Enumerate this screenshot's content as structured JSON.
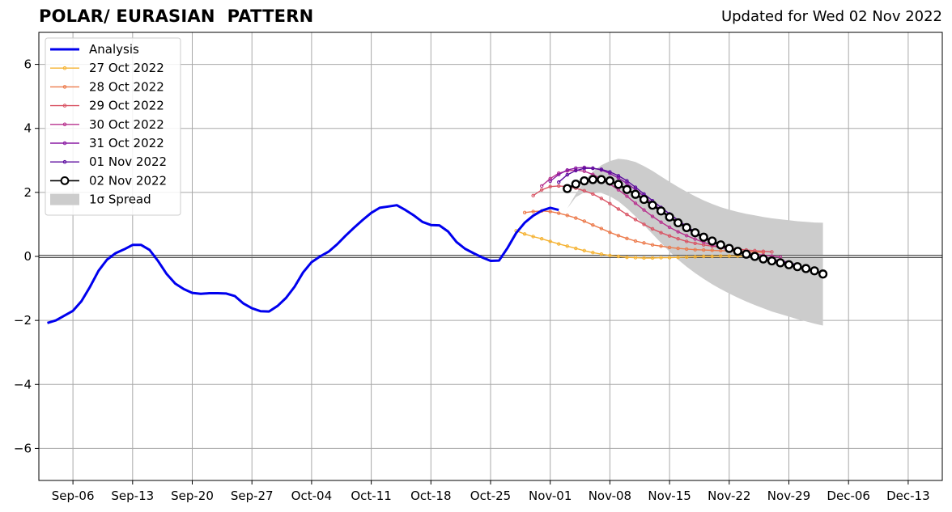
{
  "chart_data": {
    "type": "line",
    "title": "POLAR/ EURASIAN  PATTERN",
    "subtitle": "Updated for Wed 02 Nov 2022",
    "xlabel": "",
    "ylabel": "",
    "xlim": [
      "2022-09-02",
      "2022-12-17"
    ],
    "ylim": [
      -7,
      7
    ],
    "grid": true,
    "legend_position": "top-left",
    "xticks": [
      {
        "date": "2022-09-06",
        "label": "Sep-06"
      },
      {
        "date": "2022-09-13",
        "label": "Sep-13"
      },
      {
        "date": "2022-09-20",
        "label": "Sep-20"
      },
      {
        "date": "2022-09-27",
        "label": "Sep-27"
      },
      {
        "date": "2022-10-04",
        "label": "Oct-04"
      },
      {
        "date": "2022-10-11",
        "label": "Oct-11"
      },
      {
        "date": "2022-10-18",
        "label": "Oct-18"
      },
      {
        "date": "2022-10-25",
        "label": "Oct-25"
      },
      {
        "date": "2022-11-01",
        "label": "Nov-01"
      },
      {
        "date": "2022-11-08",
        "label": "Nov-08"
      },
      {
        "date": "2022-11-15",
        "label": "Nov-15"
      },
      {
        "date": "2022-11-22",
        "label": "Nov-22"
      },
      {
        "date": "2022-11-29",
        "label": "Nov-29"
      },
      {
        "date": "2022-12-06",
        "label": "Dec-06"
      },
      {
        "date": "2022-12-13",
        "label": "Dec-13"
      }
    ],
    "yticks": [
      {
        "value": -6,
        "label": "−6"
      },
      {
        "value": -4,
        "label": "−4"
      },
      {
        "value": -2,
        "label": "−2"
      },
      {
        "value": 0,
        "label": "0"
      },
      {
        "value": 2,
        "label": "2"
      },
      {
        "value": 4,
        "label": "4"
      },
      {
        "value": 6,
        "label": "6"
      }
    ],
    "analysis": {
      "name": "Analysis",
      "color": "#0000ee",
      "start_date": "2022-09-03",
      "values": [
        -2.08,
        -2.0,
        -1.85,
        -1.7,
        -1.4,
        -0.95,
        -0.45,
        -0.1,
        0.1,
        0.22,
        0.36,
        0.36,
        0.2,
        -0.15,
        -0.55,
        -0.85,
        -1.02,
        -1.14,
        -1.17,
        -1.15,
        -1.15,
        -1.16,
        -1.24,
        -1.47,
        -1.62,
        -1.71,
        -1.72,
        -1.55,
        -1.3,
        -0.95,
        -0.5,
        -0.18,
        0.0,
        0.15,
        0.38,
        0.65,
        0.9,
        1.14,
        1.36,
        1.52,
        1.56,
        1.6,
        1.45,
        1.28,
        1.08,
        0.98,
        0.97,
        0.78,
        0.45,
        0.24,
        0.1,
        -0.03,
        -0.14,
        -0.13,
        0.27,
        0.73,
        1.05,
        1.27,
        1.43,
        1.52,
        1.45
      ]
    },
    "series": [
      {
        "name": "27 Oct 2022",
        "color": "#f5b231",
        "start_date": "2022-10-28",
        "values": [
          0.8,
          0.7,
          0.62,
          0.55,
          0.47,
          0.39,
          0.32,
          0.25,
          0.18,
          0.12,
          0.07,
          0.03,
          0.0,
          -0.03,
          -0.04,
          -0.05,
          -0.05,
          -0.04,
          -0.04,
          -0.03,
          -0.02,
          -0.01,
          0.0,
          0.0,
          0.01,
          0.01,
          0.01,
          0.0,
          0.0
        ]
      },
      {
        "name": "28 Oct 2022",
        "color": "#ec7a4b",
        "start_date": "2022-10-29",
        "values": [
          1.37,
          1.4,
          1.42,
          1.4,
          1.35,
          1.28,
          1.2,
          1.1,
          0.98,
          0.87,
          0.75,
          0.65,
          0.56,
          0.48,
          0.42,
          0.36,
          0.32,
          0.28,
          0.25,
          0.23,
          0.21,
          0.2,
          0.19,
          0.18,
          0.17,
          0.16,
          0.15,
          0.14,
          0.13
        ]
      },
      {
        "name": "29 Oct 2022",
        "color": "#d95464",
        "start_date": "2022-10-30",
        "values": [
          1.9,
          2.08,
          2.18,
          2.2,
          2.18,
          2.13,
          2.05,
          1.95,
          1.81,
          1.65,
          1.48,
          1.31,
          1.15,
          1.0,
          0.86,
          0.74,
          0.64,
          0.55,
          0.47,
          0.41,
          0.36,
          0.32,
          0.28,
          0.25,
          0.23,
          0.2,
          0.18,
          0.16,
          0.14
        ]
      },
      {
        "name": "30 Oct 2022",
        "color": "#b8328e",
        "start_date": "2022-10-31",
        "values": [
          2.2,
          2.43,
          2.6,
          2.67,
          2.7,
          2.66,
          2.56,
          2.42,
          2.26,
          2.08,
          1.88,
          1.66,
          1.45,
          1.25,
          1.07,
          0.91,
          0.77,
          0.65,
          0.54,
          0.44,
          0.35,
          0.28,
          0.22,
          0.16,
          0.11,
          0.07,
          0.04,
          0.01,
          -0.02
        ]
      },
      {
        "name": "31 Oct 2022",
        "color": "#8a1aa3",
        "start_date": "2022-11-01",
        "values": [
          2.35,
          2.56,
          2.7,
          2.76,
          2.78,
          2.76,
          2.7,
          2.59,
          2.45,
          2.28,
          2.09,
          1.88,
          1.66,
          1.45,
          1.24,
          1.05,
          0.87,
          0.71,
          0.57,
          0.44,
          0.33,
          0.23,
          0.15,
          0.07,
          0.01,
          -0.05,
          -0.1,
          -0.14,
          -0.18
        ]
      },
      {
        "name": "01 Nov 2022",
        "color": "#5b0a9e",
        "start_date": "2022-11-02",
        "values": [
          2.32,
          2.55,
          2.68,
          2.75,
          2.75,
          2.72,
          2.64,
          2.52,
          2.36,
          2.16,
          1.95,
          1.74,
          1.53,
          1.33,
          1.13,
          0.94,
          0.77,
          0.62,
          0.48,
          0.36,
          0.25,
          0.16,
          0.08,
          0.01,
          -0.05,
          -0.11,
          -0.16,
          -0.21,
          -0.25
        ]
      },
      {
        "name": "02 Nov 2022",
        "color": "#000000",
        "start_date": "2022-11-03",
        "values": [
          2.12,
          2.26,
          2.36,
          2.4,
          2.4,
          2.36,
          2.25,
          2.09,
          1.94,
          1.78,
          1.6,
          1.42,
          1.23,
          1.05,
          0.9,
          0.74,
          0.6,
          0.48,
          0.36,
          0.25,
          0.16,
          0.07,
          0.0,
          -0.08,
          -0.14,
          -0.2,
          -0.26,
          -0.32,
          -0.38,
          -0.45,
          -0.55
        ]
      }
    ],
    "spread": {
      "name": "1σ Spread",
      "color": "#cccccc",
      "start_date": "2022-11-03",
      "upper": [
        1.5,
        1.95,
        2.35,
        2.65,
        2.85,
        2.98,
        3.05,
        3.02,
        2.95,
        2.82,
        2.67,
        2.5,
        2.33,
        2.17,
        2.02,
        1.88,
        1.75,
        1.64,
        1.54,
        1.46,
        1.39,
        1.33,
        1.28,
        1.23,
        1.19,
        1.16,
        1.13,
        1.1,
        1.08,
        1.06,
        1.05
      ],
      "lower": [
        1.5,
        1.85,
        2.0,
        2.02,
        1.98,
        1.88,
        1.72,
        1.5,
        1.25,
        0.98,
        0.7,
        0.42,
        0.15,
        -0.1,
        -0.32,
        -0.52,
        -0.7,
        -0.87,
        -1.02,
        -1.16,
        -1.29,
        -1.41,
        -1.52,
        -1.62,
        -1.72,
        -1.8,
        -1.88,
        -1.96,
        -2.03,
        -2.1,
        -2.16
      ]
    }
  }
}
